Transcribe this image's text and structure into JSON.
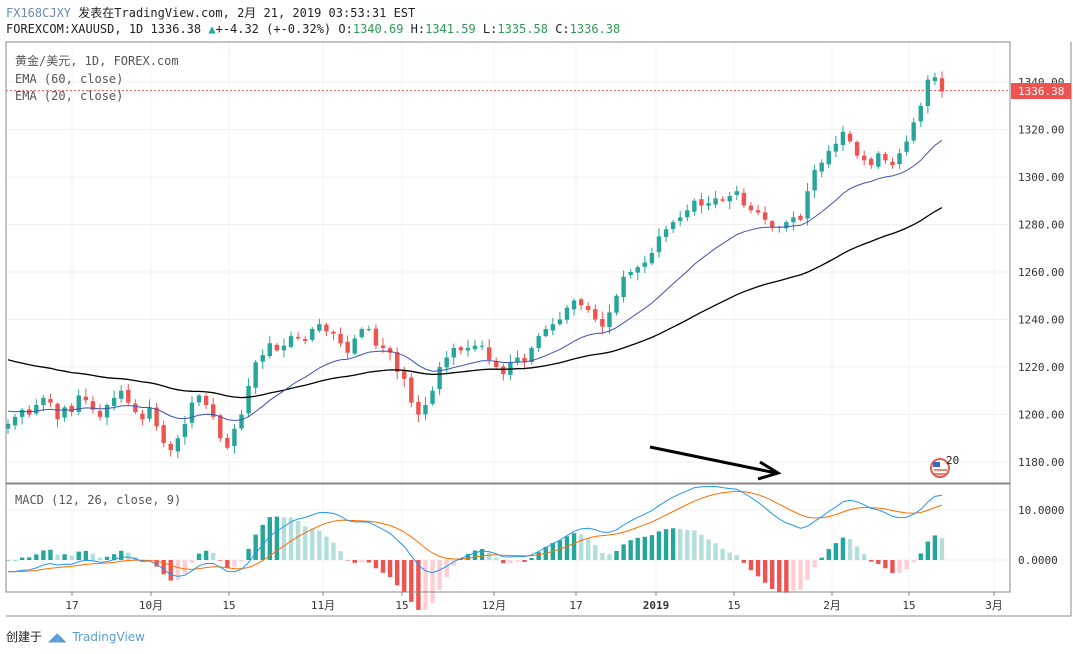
{
  "header": {
    "line1_symbol": "FX168CJXY",
    "line1_text": "发表在TradingView.com, 2月 21, 2019 03:53:31 EST",
    "symbol": "FOREXCOM:XAUUSD, 1D",
    "last": "1336.38",
    "change": "+-4.32 (+-0.32%)",
    "o_label": "O:",
    "o": "1340.69",
    "h_label": "H:",
    "h": "1341.59",
    "l_label": "L:",
    "l": "1335.58",
    "c_label": "C:",
    "c": "1336.38"
  },
  "legend": {
    "title": "黄金/美元, 1D, FOREX.com",
    "ema60": "EMA (60, close)",
    "ema20": "EMA (20, close)",
    "macd": "MACD (12, 26, close, 9)"
  },
  "price_label": "1336.38",
  "badge": "20",
  "footer": {
    "created": "创建于",
    "brand": "TradingView"
  },
  "colors": {
    "up": "#26a69a",
    "down": "#ef5350",
    "ema20": "#3f51b5",
    "ema60": "#000000",
    "macd": "#2196f3",
    "signal": "#ff6d00",
    "hist_up_strong": "#26a69a",
    "hist_up_weak": "#b2dfdb",
    "hist_down_strong": "#ef5350",
    "hist_down_weak": "#ffcdd2"
  },
  "chart_data": [
    {
      "type": "candlestick",
      "title": "黄金/美元, 1D, FOREX.com",
      "ylim": [
        1170,
        1350
      ],
      "y_ticks": [
        "1180.00",
        "1200.00",
        "1220.00",
        "1240.00",
        "1260.00",
        "1280.00",
        "1300.00",
        "1320.00",
        "1340.00"
      ],
      "x_ticks": [
        "17",
        "10月",
        "15",
        "11月",
        "15",
        "12月",
        "17",
        "2019",
        "15",
        "2月",
        "15",
        "3月"
      ],
      "closes": [
        1196,
        1199,
        1202,
        1200,
        1204,
        1207,
        1205,
        1198,
        1203,
        1201,
        1208,
        1206,
        1202,
        1199,
        1204,
        1207,
        1210,
        1205,
        1201,
        1198,
        1203,
        1195,
        1188,
        1185,
        1190,
        1196,
        1205,
        1208,
        1204,
        1199,
        1190,
        1186,
        1194,
        1200,
        1212,
        1222,
        1225,
        1230,
        1227,
        1229,
        1233,
        1232,
        1231,
        1236,
        1238,
        1235,
        1234,
        1230,
        1226,
        1232,
        1236,
        1236,
        1229,
        1228,
        1226,
        1218,
        1215,
        1205,
        1200,
        1204,
        1210,
        1220,
        1224,
        1228,
        1227,
        1228,
        1229,
        1229,
        1223,
        1220,
        1217,
        1222,
        1224,
        1222,
        1228,
        1233,
        1236,
        1238,
        1240,
        1245,
        1248,
        1246,
        1244,
        1240,
        1237,
        1243,
        1250,
        1258,
        1260,
        1262,
        1264,
        1268,
        1275,
        1278,
        1281,
        1283,
        1286,
        1290,
        1288,
        1289,
        1291,
        1290,
        1292,
        1294,
        1288,
        1286,
        1285,
        1282,
        1279,
        1279,
        1281,
        1283,
        1282,
        1294,
        1303,
        1306,
        1311,
        1314,
        1319,
        1315,
        1309,
        1307,
        1305,
        1310,
        1307,
        1305,
        1310,
        1315,
        1323,
        1330,
        1341,
        1342,
        1336
      ],
      "series": [
        {
          "name": "EMA (20, close)"
        },
        {
          "name": "EMA (60, close)"
        }
      ],
      "last_price": 1336.38
    },
    {
      "type": "line",
      "title": "MACD (12, 26, close, 9)",
      "ylim": [
        -5,
        14
      ],
      "y_ticks": [
        "10.0000",
        "0.0000"
      ],
      "series": [
        {
          "name": "MACD",
          "values": []
        },
        {
          "name": "signal",
          "values": []
        },
        {
          "name": "histogram",
          "values": []
        }
      ]
    }
  ]
}
